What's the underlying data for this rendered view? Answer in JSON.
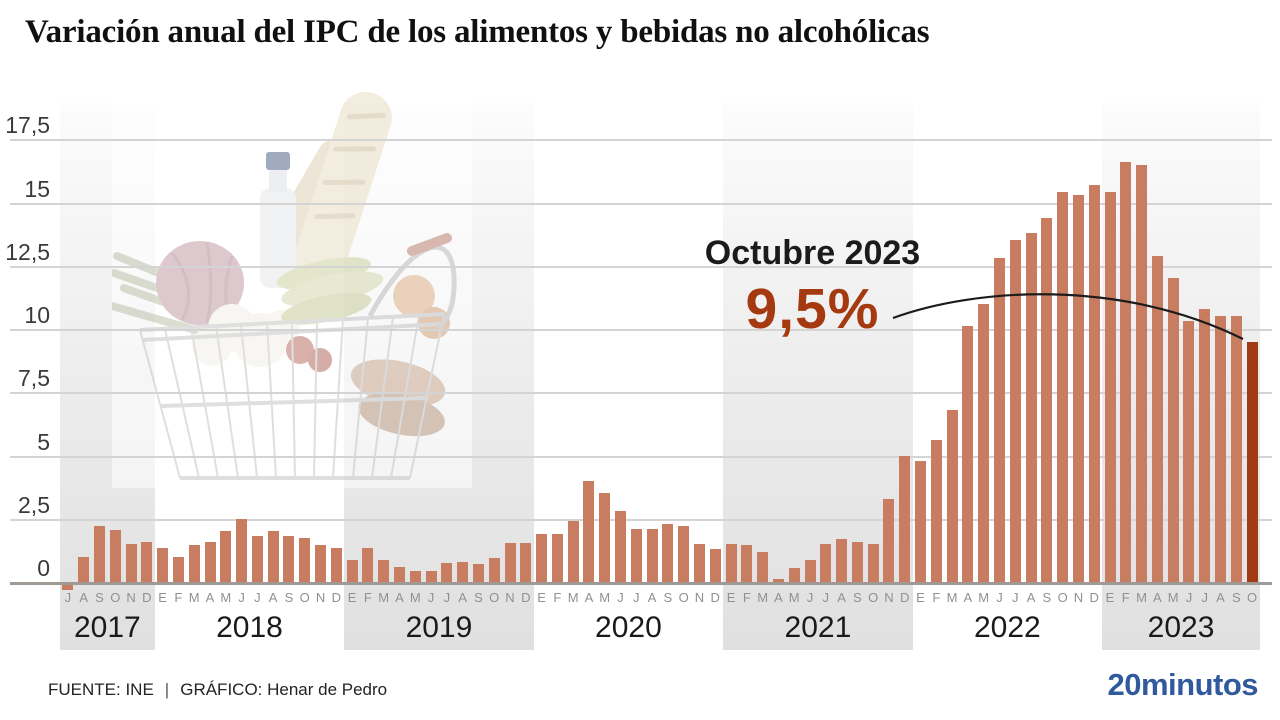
{
  "title": "Variación anual del IPC de los alimentos y bebidas no alcohólicas",
  "annotation": {
    "label": "Octubre 2023",
    "value": "9,5%"
  },
  "footer": {
    "source": "FUENTE: INE",
    "separator": "|",
    "credit": "GRÁFICO: Henar de Pedro",
    "logo": "20minutos"
  },
  "colors": {
    "bar": "#c87c60",
    "bar_dark": "#a23a13",
    "accent": "#a53a10",
    "blue": "#315a9e",
    "grid": "#d4d4d4",
    "baseline": "#a09a94",
    "month": "#909090",
    "year_text": "#1a1a1a",
    "band_top": "#fcfcfc",
    "band_mid": "#ebebeb",
    "band_bottom": "#e0e0e0"
  },
  "chart_data": {
    "type": "bar",
    "unit": "%",
    "title": "Variación anual del IPC de los alimentos y bebidas no alcohólicas",
    "ylim": [
      0,
      17.5
    ],
    "grid": true,
    "y_ticks": [
      {
        "label": "17,5",
        "value": 17.5
      },
      {
        "label": "15",
        "value": 15
      },
      {
        "label": "12,5",
        "value": 12.5
      },
      {
        "label": "10",
        "value": 10
      },
      {
        "label": "7,5",
        "value": 7.5
      },
      {
        "label": "5",
        "value": 5
      },
      {
        "label": "2,5",
        "value": 2.5
      },
      {
        "label": "0",
        "value": 0
      }
    ],
    "highlight_last_bar": true,
    "years": [
      {
        "label": "2017",
        "months": [
          "J",
          "A",
          "S",
          "O",
          "N",
          "D"
        ],
        "values": [
          -0.2,
          1.0,
          2.2,
          2.05,
          1.5,
          1.6
        ]
      },
      {
        "label": "2018",
        "months": [
          "E",
          "F",
          "M",
          "A",
          "M",
          "J",
          "J",
          "A",
          "S",
          "O",
          "N",
          "D"
        ],
        "values": [
          1.35,
          1.0,
          1.45,
          1.6,
          2.0,
          2.5,
          1.8,
          2.0,
          1.8,
          1.75,
          1.45,
          1.35
        ]
      },
      {
        "label": "2019",
        "months": [
          "E",
          "F",
          "M",
          "A",
          "M",
          "J",
          "J",
          "A",
          "S",
          "O",
          "N",
          "D"
        ],
        "values": [
          0.85,
          1.35,
          0.85,
          0.6,
          0.45,
          0.45,
          0.75,
          0.8,
          0.7,
          0.95,
          1.55,
          1.55
        ]
      },
      {
        "label": "2020",
        "months": [
          "E",
          "F",
          "M",
          "A",
          "M",
          "J",
          "J",
          "A",
          "S",
          "O",
          "N",
          "D"
        ],
        "values": [
          1.9,
          1.9,
          2.4,
          4.0,
          3.5,
          2.8,
          2.1,
          2.1,
          2.3,
          2.2,
          1.5,
          1.3
        ]
      },
      {
        "label": "2021",
        "months": [
          "E",
          "F",
          "M",
          "A",
          "M",
          "J",
          "J",
          "A",
          "S",
          "O",
          "N",
          "D"
        ],
        "values": [
          1.5,
          1.45,
          1.2,
          0.1,
          0.55,
          0.85,
          1.5,
          1.7,
          1.6,
          1.5,
          3.3,
          5.0
        ]
      },
      {
        "label": "2022",
        "months": [
          "E",
          "F",
          "M",
          "A",
          "M",
          "J",
          "J",
          "A",
          "S",
          "O",
          "N",
          "D"
        ],
        "values": [
          4.8,
          5.6,
          6.8,
          10.1,
          11.0,
          12.8,
          13.5,
          13.8,
          14.4,
          15.4,
          15.3,
          15.7
        ]
      },
      {
        "label": "2023",
        "months": [
          "E",
          "F",
          "M",
          "A",
          "M",
          "J",
          "J",
          "A",
          "S",
          "O"
        ],
        "values": [
          15.4,
          16.6,
          16.5,
          12.9,
          12.0,
          10.3,
          10.8,
          10.5,
          10.5,
          9.5
        ]
      }
    ]
  }
}
